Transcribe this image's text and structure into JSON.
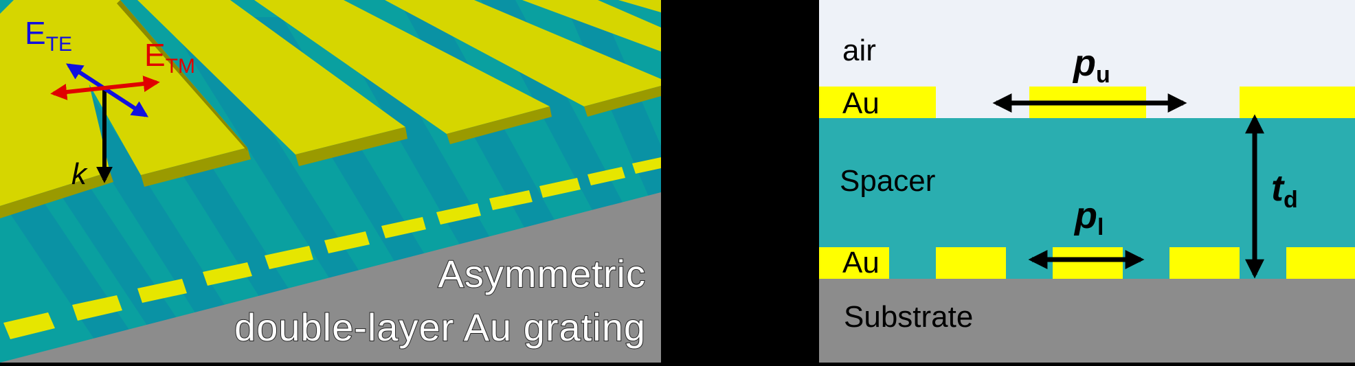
{
  "left_panel": {
    "labels": {
      "e_te": "E",
      "e_te_sub": "TE",
      "e_tm": "E",
      "e_tm_sub": "TM",
      "k": "k"
    },
    "title_line1": "Asymmetric",
    "title_line2": "double-layer Au grating",
    "colors": {
      "gold": "#d6d600",
      "spacer": "#0aa0a0",
      "substrate": "#8c8c8c",
      "e_te": "#1010e0",
      "e_tm": "#e00000"
    }
  },
  "right_panel": {
    "labels": {
      "air": "air",
      "au_upper": "Au",
      "spacer": "Spacer",
      "au_lower": "Au",
      "substrate": "Substrate",
      "p_upper": "p",
      "p_upper_sub": "u",
      "p_lower": "p",
      "p_lower_sub": "l",
      "t_d": "t",
      "t_d_sub": "d"
    },
    "colors": {
      "air": "#eef2f8",
      "au": "#ffff00",
      "spacer": "#2aaeb0",
      "substrate": "#8c8c8c"
    }
  }
}
